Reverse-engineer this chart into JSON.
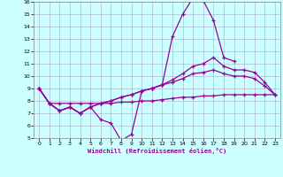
{
  "xlabel": "Windchill (Refroidissement éolien,°C)",
  "xlim": [
    -0.5,
    23.5
  ],
  "ylim": [
    5,
    16
  ],
  "yticks": [
    5,
    6,
    7,
    8,
    9,
    10,
    11,
    12,
    13,
    14,
    15,
    16
  ],
  "xticks": [
    0,
    1,
    2,
    3,
    4,
    5,
    6,
    7,
    8,
    9,
    10,
    11,
    12,
    13,
    14,
    15,
    16,
    17,
    18,
    19,
    20,
    21,
    22,
    23
  ],
  "line_color": "#990099",
  "bg_color": "#ccffff",
  "grid_color": "#aaaacc",
  "series": [
    {
      "x": [
        0,
        1,
        2,
        3,
        4,
        5,
        6,
        7,
        8,
        9,
        10,
        11,
        12,
        13,
        14,
        15,
        16,
        17,
        18,
        19
      ],
      "y": [
        9.0,
        7.8,
        7.2,
        7.5,
        7.0,
        7.5,
        6.5,
        6.2,
        4.8,
        5.3,
        8.8,
        9.0,
        9.3,
        13.2,
        15.0,
        16.3,
        16.1,
        14.5,
        11.5,
        11.2
      ]
    },
    {
      "x": [
        0,
        1,
        2,
        3,
        4,
        5,
        6,
        7,
        8,
        9,
        10,
        11,
        12,
        13,
        14,
        15,
        16,
        17,
        18,
        19,
        20,
        21,
        22,
        23
      ],
      "y": [
        9.0,
        7.8,
        7.2,
        7.5,
        7.0,
        7.5,
        7.8,
        8.0,
        8.3,
        8.5,
        8.8,
        9.0,
        9.3,
        9.7,
        10.2,
        10.8,
        11.0,
        11.5,
        10.8,
        10.5,
        10.5,
        10.3,
        9.5,
        8.5
      ]
    },
    {
      "x": [
        0,
        1,
        2,
        3,
        4,
        5,
        6,
        7,
        8,
        9,
        10,
        11,
        12,
        13,
        14,
        15,
        16,
        17,
        18,
        19,
        20,
        21,
        22,
        23
      ],
      "y": [
        9.0,
        7.8,
        7.2,
        7.5,
        7.0,
        7.5,
        7.8,
        8.0,
        8.3,
        8.5,
        8.8,
        9.0,
        9.3,
        9.5,
        9.8,
        10.2,
        10.3,
        10.5,
        10.2,
        10.0,
        10.0,
        9.8,
        9.2,
        8.5
      ]
    },
    {
      "x": [
        0,
        1,
        2,
        3,
        4,
        5,
        6,
        7,
        8,
        9,
        10,
        11,
        12,
        13,
        14,
        15,
        16,
        17,
        18,
        19,
        20,
        21,
        22,
        23
      ],
      "y": [
        9.0,
        7.8,
        7.8,
        7.8,
        7.8,
        7.8,
        7.8,
        7.8,
        7.9,
        7.9,
        8.0,
        8.0,
        8.1,
        8.2,
        8.3,
        8.3,
        8.4,
        8.4,
        8.5,
        8.5,
        8.5,
        8.5,
        8.5,
        8.5
      ]
    }
  ]
}
